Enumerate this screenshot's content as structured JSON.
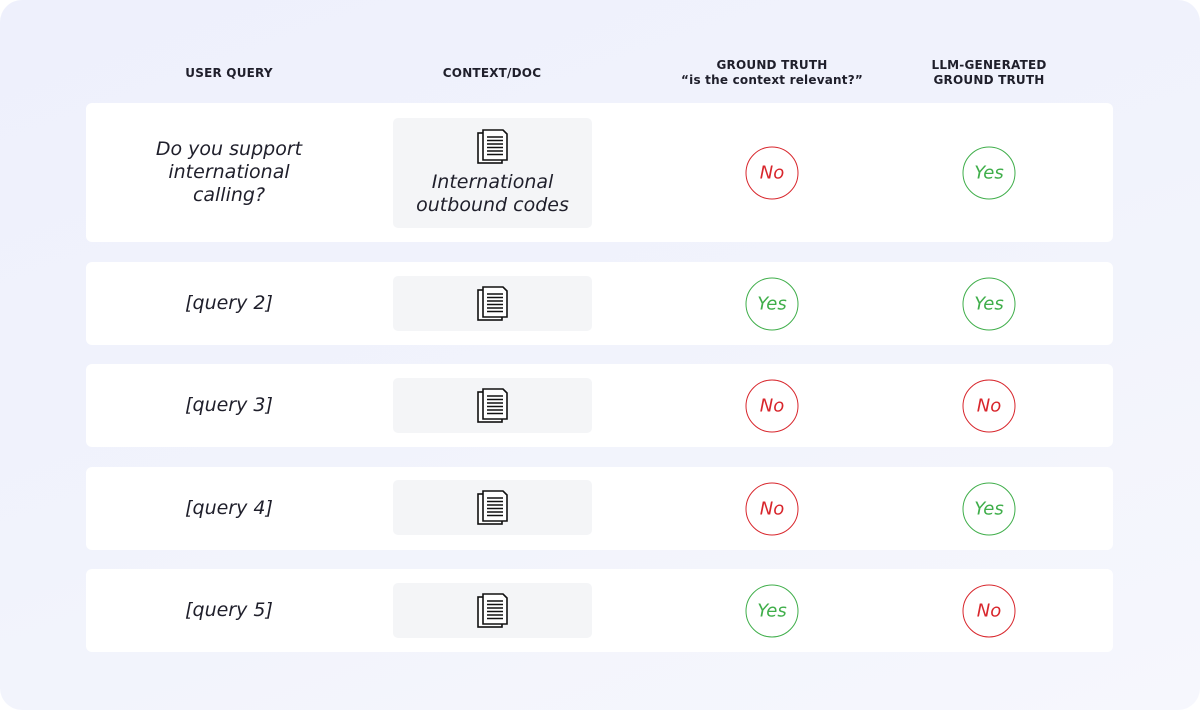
{
  "headers": {
    "user_query": "USER QUERY",
    "context": "CONTEXT/DOC",
    "ground_truth": "GROUND TRUTH",
    "ground_truth_sub": "“is the context relevant?”",
    "llm_line1": "LLM-GENERATED",
    "llm_line2": "GROUND TRUTH"
  },
  "colors": {
    "yes": "#3fae4a",
    "no": "#d8262c"
  },
  "rows": [
    {
      "query": "Do you support international calling?",
      "doc_title": "International outbound codes",
      "icon": "document-icon",
      "ground_truth": "No",
      "llm": "Yes"
    },
    {
      "query": "[query 2]",
      "icon": "document-icon",
      "ground_truth": "Yes",
      "llm": "Yes"
    },
    {
      "query": "[query 3]",
      "icon": "document-icon",
      "ground_truth": "No",
      "llm": "No"
    },
    {
      "query": "[query 4]",
      "icon": "document-icon",
      "ground_truth": "No",
      "llm": "Yes"
    },
    {
      "query": "[query 5]",
      "icon": "document-icon",
      "ground_truth": "Yes",
      "llm": "No"
    }
  ]
}
